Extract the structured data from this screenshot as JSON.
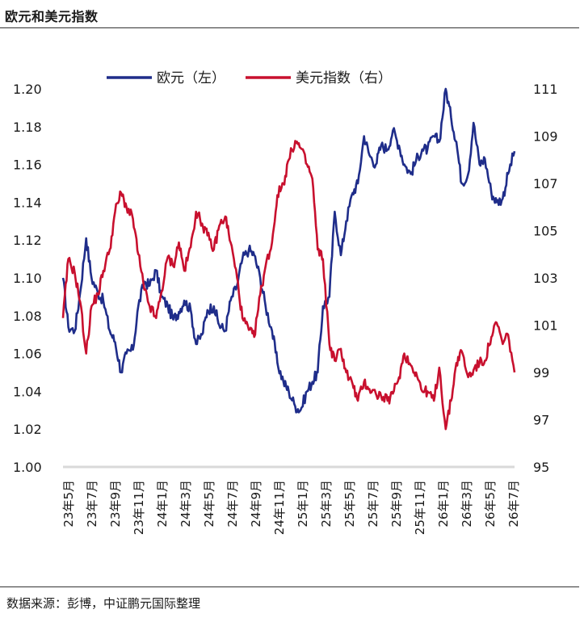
{
  "header": {
    "title": "欧元和美元指数"
  },
  "footer": {
    "source": "数据来源：彭博，中证鹏元国际整理"
  },
  "colors": {
    "eur": "#1f2d8a",
    "dxy": "#c8102e",
    "baseline": "#d9d9d9",
    "text": "#1a1a1a"
  },
  "chart_data": {
    "type": "line",
    "title": "欧元和美元指数",
    "legend": {
      "placement": "top",
      "entries": [
        "欧元（左）",
        "美元指数（右）"
      ]
    },
    "x_tick_labels": [
      "23年5月",
      "23年7月",
      "23年9月",
      "23年11月",
      "24年1月",
      "24年3月",
      "24年5月",
      "24年7月",
      "24年9月",
      "24年11月",
      "25年1月",
      "25年3月",
      "25年5月",
      "25年7月",
      "25年9月",
      "25年11月",
      "26年1月",
      "26年3月",
      "26年5月",
      "26年7月"
    ],
    "y_left": {
      "ticks": [
        "1.00",
        "1.02",
        "1.04",
        "1.06",
        "1.08",
        "1.10",
        "1.12",
        "1.14",
        "1.16",
        "1.18",
        "1.20"
      ],
      "range": [
        1.0,
        1.2
      ]
    },
    "y_right": {
      "ticks": [
        "95",
        "97",
        "99",
        "101",
        "103",
        "105",
        "107",
        "109",
        "111"
      ],
      "range": [
        95,
        111
      ]
    },
    "grid": false,
    "series": [
      {
        "name": "欧元（左）",
        "axis": "left",
        "dates": [
          "2023-05-01",
          "2023-05-15",
          "2023-06-01",
          "2023-06-15",
          "2023-07-01",
          "2023-07-15",
          "2023-08-01",
          "2023-08-15",
          "2023-09-01",
          "2023-09-15",
          "2023-10-01",
          "2023-10-15",
          "2023-11-01",
          "2023-11-15",
          "2023-12-01",
          "2023-12-15",
          "2024-01-01",
          "2024-01-15",
          "2024-02-01",
          "2024-02-15",
          "2024-03-01",
          "2024-03-15",
          "2024-04-01",
          "2024-04-15",
          "2024-05-01",
          "2024-05-15",
          "2024-06-01",
          "2024-06-15",
          "2024-07-01",
          "2024-07-15",
          "2024-08-01",
          "2024-08-15",
          "2024-09-01",
          "2024-09-15",
          "2024-10-01",
          "2024-10-15",
          "2024-11-01",
          "2024-11-15",
          "2024-12-01",
          "2024-12-15",
          "2025-01-01",
          "2025-01-15",
          "2025-02-01",
          "2025-02-15",
          "2025-03-01",
          "2025-03-15",
          "2025-04-01",
          "2025-04-15",
          "2025-05-01",
          "2025-05-15",
          "2025-06-01",
          "2025-06-15",
          "2025-07-01",
          "2025-07-15",
          "2025-08-01",
          "2025-08-15",
          "2025-09-01",
          "2025-09-15",
          "2025-10-01",
          "2025-10-15",
          "2025-11-01",
          "2025-11-15",
          "2025-12-01",
          "2025-12-15",
          "2026-01-01",
          "2026-01-15",
          "2026-02-01",
          "2026-02-15",
          "2026-03-01",
          "2026-03-15",
          "2026-04-01",
          "2026-04-15",
          "2026-05-01",
          "2026-05-15",
          "2026-06-01",
          "2026-06-15",
          "2026-07-01",
          "2026-07-15",
          "2026-08-01"
        ],
        "values": [
          1.1,
          1.074,
          1.072,
          1.092,
          1.121,
          1.1,
          1.092,
          1.088,
          1.072,
          1.066,
          1.05,
          1.06,
          1.062,
          1.085,
          1.098,
          1.096,
          1.104,
          1.09,
          1.085,
          1.078,
          1.082,
          1.088,
          1.083,
          1.065,
          1.07,
          1.083,
          1.085,
          1.075,
          1.072,
          1.088,
          1.096,
          1.11,
          1.115,
          1.112,
          1.1,
          1.085,
          1.072,
          1.055,
          1.045,
          1.04,
          1.032,
          1.03,
          1.04,
          1.045,
          1.05,
          1.085,
          1.09,
          1.135,
          1.112,
          1.13,
          1.145,
          1.15,
          1.175,
          1.165,
          1.16,
          1.17,
          1.168,
          1.178,
          1.17,
          1.16,
          1.155,
          1.162,
          1.168,
          1.168,
          1.175,
          1.172,
          1.2,
          1.185,
          1.172,
          1.15,
          1.155,
          1.182,
          1.16,
          1.163,
          1.145,
          1.14,
          1.142,
          1.155,
          1.167
        ]
      },
      {
        "name": "美元指数（右）",
        "axis": "right",
        "dates": [
          "2023-05-01",
          "2023-05-15",
          "2023-06-01",
          "2023-06-15",
          "2023-07-01",
          "2023-07-15",
          "2023-08-01",
          "2023-08-15",
          "2023-09-01",
          "2023-09-15",
          "2023-10-01",
          "2023-10-15",
          "2023-11-01",
          "2023-11-15",
          "2023-12-01",
          "2023-12-15",
          "2024-01-01",
          "2024-01-15",
          "2024-02-01",
          "2024-02-15",
          "2024-03-01",
          "2024-03-15",
          "2024-04-01",
          "2024-04-15",
          "2024-05-01",
          "2024-05-15",
          "2024-06-01",
          "2024-06-15",
          "2024-07-01",
          "2024-07-15",
          "2024-08-01",
          "2024-08-15",
          "2024-09-01",
          "2024-09-15",
          "2024-10-01",
          "2024-10-15",
          "2024-11-01",
          "2024-11-15",
          "2024-12-01",
          "2024-12-15",
          "2025-01-01",
          "2025-01-15",
          "2025-02-01",
          "2025-02-15",
          "2025-03-01",
          "2025-03-15",
          "2025-04-01",
          "2025-04-15",
          "2025-05-01",
          "2025-05-15",
          "2025-06-01",
          "2025-06-15",
          "2025-07-01",
          "2025-07-15",
          "2025-08-01",
          "2025-08-15",
          "2025-09-01",
          "2025-09-15",
          "2025-10-01",
          "2025-10-15",
          "2025-11-01",
          "2025-11-15",
          "2025-12-01",
          "2025-12-15",
          "2026-01-01",
          "2026-01-15",
          "2026-02-01",
          "2026-02-15",
          "2026-03-01",
          "2026-03-15",
          "2026-04-01",
          "2026-04-15",
          "2026-05-01",
          "2026-05-15",
          "2026-06-01",
          "2026-06-15",
          "2026-07-01",
          "2026-07-15",
          "2026-08-01"
        ],
        "values": [
          101.3,
          103.8,
          103.2,
          102.0,
          99.8,
          101.8,
          102.3,
          103.3,
          104.2,
          105.8,
          106.6,
          106.0,
          105.5,
          104.0,
          102.5,
          101.8,
          101.3,
          102.4,
          103.9,
          103.5,
          104.5,
          103.3,
          104.3,
          105.8,
          105.3,
          104.8,
          104.2,
          105.2,
          105.6,
          104.5,
          103.0,
          101.3,
          100.8,
          100.5,
          102.3,
          103.5,
          104.5,
          106.5,
          107.0,
          108.0,
          108.8,
          108.5,
          107.8,
          107.2,
          104.2,
          103.8,
          100.2,
          99.5,
          100.0,
          99.0,
          98.5,
          97.8,
          98.6,
          98.3,
          98.1,
          98.0,
          97.8,
          98.1,
          98.8,
          99.8,
          99.3,
          99.0,
          98.2,
          98.2,
          97.8,
          99.2,
          96.6,
          97.8,
          99.4,
          99.9,
          98.8,
          99.1,
          99.4,
          99.5,
          100.5,
          101.1,
          100.2,
          100.6,
          99.0
        ]
      }
    ]
  }
}
